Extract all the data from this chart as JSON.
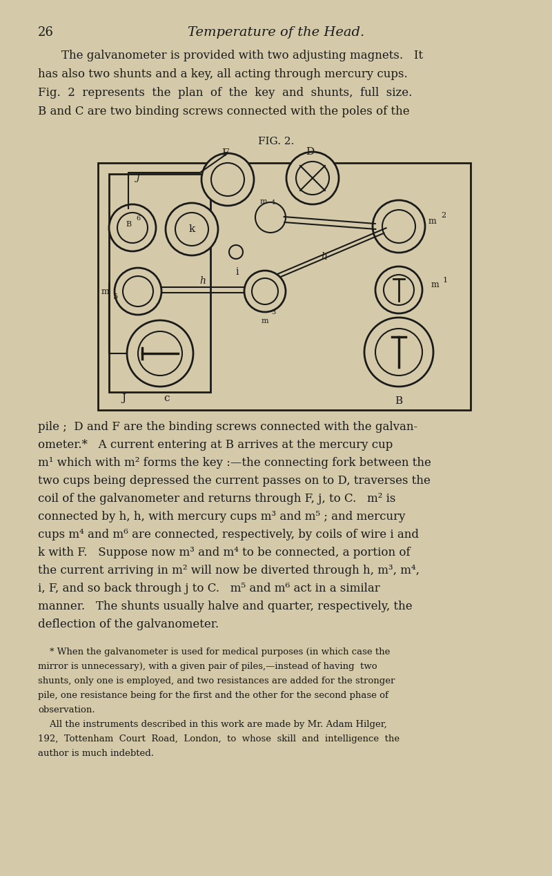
{
  "bg_color": "#d4c9a8",
  "text_color": "#1a1a1a",
  "page_number": "26",
  "page_title": "Temperature of the Head.",
  "fig_label": "FIG. 2."
}
